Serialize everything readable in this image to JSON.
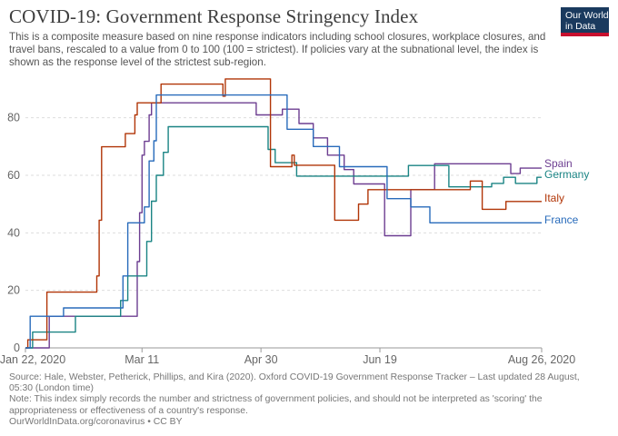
{
  "title": "COVID-19: Government Response Stringency Index",
  "subtitle": "This is a composite measure based on nine response indicators including school closures, workplace closures, and travel bans, rescaled to a value from 0 to 100 (100 = strictest). If policies vary at the subnational level, the index is shown as the response level of the strictest sub-region.",
  "logo": {
    "line1": "Our World",
    "line2": "in Data"
  },
  "footer": {
    "source": "Source: Hale, Webster, Petherick, Phillips, and Kira (2020). Oxford COVID-19 Government Response Tracker – Last updated 28 August, 05:30 (London time)",
    "note": "Note: This index simply records the number and strictness of government policies, and should not be interpreted as 'scoring' the appropriateness or effectiveness of a country's response.",
    "url": "OurWorldInData.org/coronavirus • CC BY"
  },
  "chart_data": {
    "type": "line",
    "title": "COVID-19: Government Response Stringency Index",
    "xlabel": "",
    "ylabel": "",
    "xlim": [
      "2020-01-22",
      "2020-08-26"
    ],
    "ylim": [
      0,
      90
    ],
    "yticks": [
      0,
      20,
      40,
      60,
      80
    ],
    "xticks": [
      "2020-01-22",
      "2020-03-11",
      "2020-04-30",
      "2020-06-19",
      "2020-08-26"
    ],
    "xtick_labels": [
      "Jan 22, 2020",
      "Mar 11",
      "Apr 30",
      "Jun 19",
      "Aug 26, 2020"
    ],
    "grid": "horizontal dashed",
    "legend": "line-end labels",
    "series": [
      {
        "name": "Spain",
        "color": "#6d3e91",
        "points": [
          [
            "2020-01-22",
            0
          ],
          [
            "2020-02-01",
            0
          ],
          [
            "2020-02-01",
            11
          ],
          [
            "2020-03-09",
            11
          ],
          [
            "2020-03-09",
            30
          ],
          [
            "2020-03-10",
            30
          ],
          [
            "2020-03-10",
            47
          ],
          [
            "2020-03-11",
            47
          ],
          [
            "2020-03-11",
            67
          ],
          [
            "2020-03-12",
            67
          ],
          [
            "2020-03-12",
            71.8
          ],
          [
            "2020-03-14",
            71.8
          ],
          [
            "2020-03-14",
            81
          ],
          [
            "2020-03-15",
            81
          ],
          [
            "2020-03-15",
            85.2
          ],
          [
            "2020-04-28",
            85.2
          ],
          [
            "2020-04-28",
            81
          ],
          [
            "2020-05-09",
            81
          ],
          [
            "2020-05-09",
            83
          ],
          [
            "2020-05-16",
            83
          ],
          [
            "2020-05-16",
            78
          ],
          [
            "2020-05-22",
            78
          ],
          [
            "2020-05-22",
            73
          ],
          [
            "2020-05-28",
            73
          ],
          [
            "2020-05-28",
            67
          ],
          [
            "2020-06-04",
            67
          ],
          [
            "2020-06-04",
            62
          ],
          [
            "2020-06-08",
            62
          ],
          [
            "2020-06-08",
            57
          ],
          [
            "2020-06-21",
            57
          ],
          [
            "2020-06-21",
            39
          ],
          [
            "2020-07-02",
            39
          ],
          [
            "2020-07-02",
            55
          ],
          [
            "2020-07-12",
            55
          ],
          [
            "2020-07-12",
            64
          ],
          [
            "2020-08-13",
            64
          ],
          [
            "2020-08-13",
            60.6
          ],
          [
            "2020-08-17",
            60.6
          ],
          [
            "2020-08-17",
            62.5
          ],
          [
            "2020-08-26",
            62.5
          ]
        ]
      },
      {
        "name": "Germany",
        "color": "#1a8484",
        "points": [
          [
            "2020-01-22",
            0
          ],
          [
            "2020-01-25",
            0
          ],
          [
            "2020-01-25",
            5.5
          ],
          [
            "2020-02-12",
            5.5
          ],
          [
            "2020-02-12",
            11
          ],
          [
            "2020-03-02",
            11
          ],
          [
            "2020-03-02",
            16.5
          ],
          [
            "2020-03-05",
            16.5
          ],
          [
            "2020-03-05",
            25
          ],
          [
            "2020-03-13",
            25
          ],
          [
            "2020-03-13",
            37
          ],
          [
            "2020-03-15",
            37
          ],
          [
            "2020-03-15",
            51
          ],
          [
            "2020-03-17",
            51
          ],
          [
            "2020-03-17",
            60
          ],
          [
            "2020-03-20",
            60
          ],
          [
            "2020-03-20",
            68
          ],
          [
            "2020-03-22",
            68
          ],
          [
            "2020-03-22",
            76.9
          ],
          [
            "2020-05-03",
            76.9
          ],
          [
            "2020-05-03",
            69
          ],
          [
            "2020-05-06",
            69
          ],
          [
            "2020-05-06",
            64.4
          ],
          [
            "2020-05-15",
            64.4
          ],
          [
            "2020-05-15",
            59.7
          ],
          [
            "2020-07-01",
            59.7
          ],
          [
            "2020-07-01",
            63.4
          ],
          [
            "2020-07-18",
            63.4
          ],
          [
            "2020-07-18",
            56
          ],
          [
            "2020-08-05",
            56
          ],
          [
            "2020-08-05",
            57.2
          ],
          [
            "2020-08-10",
            57.2
          ],
          [
            "2020-08-10",
            59.3
          ],
          [
            "2020-08-15",
            59.3
          ],
          [
            "2020-08-15",
            57.2
          ],
          [
            "2020-08-24",
            57.2
          ],
          [
            "2020-08-24",
            59.3
          ],
          [
            "2020-08-26",
            59.3
          ]
        ]
      },
      {
        "name": "Italy",
        "color": "#b13507",
        "points": [
          [
            "2020-01-22",
            0
          ],
          [
            "2020-01-23",
            0
          ],
          [
            "2020-01-23",
            2.8
          ],
          [
            "2020-01-31",
            2.8
          ],
          [
            "2020-01-31",
            19.4
          ],
          [
            "2020-02-21",
            19.4
          ],
          [
            "2020-02-21",
            25
          ],
          [
            "2020-02-22",
            25
          ],
          [
            "2020-02-22",
            44.4
          ],
          [
            "2020-02-23",
            44.4
          ],
          [
            "2020-02-23",
            69.9
          ],
          [
            "2020-03-04",
            69.9
          ],
          [
            "2020-03-04",
            74.5
          ],
          [
            "2020-03-08",
            74.5
          ],
          [
            "2020-03-08",
            81
          ],
          [
            "2020-03-09",
            81
          ],
          [
            "2020-03-09",
            85.2
          ],
          [
            "2020-03-19",
            85.2
          ],
          [
            "2020-03-19",
            91.7
          ],
          [
            "2020-04-14",
            91.7
          ],
          [
            "2020-04-14",
            87.5
          ],
          [
            "2020-04-15",
            87.5
          ],
          [
            "2020-04-15",
            93.5
          ],
          [
            "2020-05-04",
            93.5
          ],
          [
            "2020-05-04",
            63
          ],
          [
            "2020-05-13",
            63
          ],
          [
            "2020-05-13",
            67
          ],
          [
            "2020-05-14",
            67
          ],
          [
            "2020-05-14",
            63.5
          ],
          [
            "2020-05-31",
            63.5
          ],
          [
            "2020-05-31",
            44.4
          ],
          [
            "2020-06-10",
            44.4
          ],
          [
            "2020-06-10",
            50
          ],
          [
            "2020-06-14",
            50
          ],
          [
            "2020-06-14",
            55
          ],
          [
            "2020-07-27",
            55
          ],
          [
            "2020-07-27",
            58
          ],
          [
            "2020-08-01",
            58
          ],
          [
            "2020-08-01",
            48.2
          ],
          [
            "2020-08-11",
            48.2
          ],
          [
            "2020-08-11",
            50.9
          ],
          [
            "2020-08-26",
            50.9
          ]
        ]
      },
      {
        "name": "France",
        "color": "#286bbb",
        "points": [
          [
            "2020-01-22",
            0
          ],
          [
            "2020-01-24",
            0
          ],
          [
            "2020-01-24",
            11
          ],
          [
            "2020-02-07",
            11
          ],
          [
            "2020-02-07",
            13.9
          ],
          [
            "2020-03-03",
            13.9
          ],
          [
            "2020-03-03",
            25
          ],
          [
            "2020-03-05",
            25
          ],
          [
            "2020-03-05",
            43.5
          ],
          [
            "2020-03-12",
            43.5
          ],
          [
            "2020-03-12",
            49
          ],
          [
            "2020-03-14",
            49
          ],
          [
            "2020-03-14",
            65
          ],
          [
            "2020-03-16",
            65
          ],
          [
            "2020-03-16",
            72
          ],
          [
            "2020-03-17",
            72
          ],
          [
            "2020-03-17",
            87.9
          ],
          [
            "2020-05-11",
            87.9
          ],
          [
            "2020-05-11",
            76
          ],
          [
            "2020-05-22",
            76
          ],
          [
            "2020-05-22",
            70
          ],
          [
            "2020-06-02",
            70
          ],
          [
            "2020-06-02",
            63
          ],
          [
            "2020-06-22",
            63
          ],
          [
            "2020-06-22",
            51.9
          ],
          [
            "2020-07-02",
            51.9
          ],
          [
            "2020-07-02",
            49
          ],
          [
            "2020-07-10",
            49
          ],
          [
            "2020-07-10",
            43.5
          ],
          [
            "2020-08-26",
            43.5
          ]
        ]
      }
    ]
  }
}
